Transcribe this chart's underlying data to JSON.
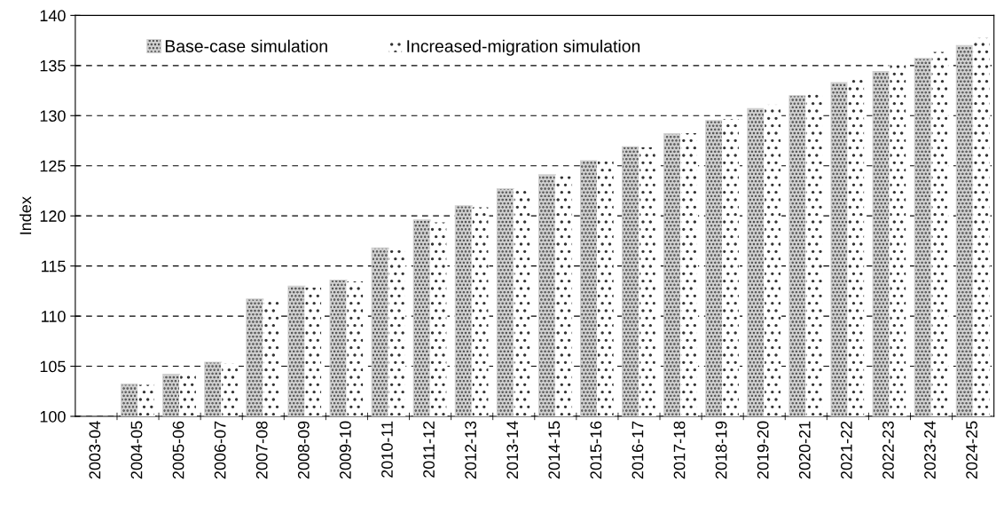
{
  "chart_data": {
    "type": "bar",
    "ylabel": "Index",
    "categories": [
      "2003-04",
      "2004-05",
      "2005-06",
      "2006-07",
      "2007-08",
      "2008-09",
      "2009-10",
      "2010-11",
      "2011-12",
      "2012-13",
      "2013-14",
      "2014-15",
      "2015-16",
      "2016-17",
      "2017-18",
      "2018-19",
      "2019-20",
      "2020-21",
      "2021-22",
      "2022-23",
      "2023-24",
      "2024-25"
    ],
    "series": [
      {
        "name": "Base-case simulation",
        "color": "#d0d0d0",
        "values": [
          null,
          103.2,
          104.2,
          105.4,
          111.7,
          113.0,
          113.6,
          116.8,
          119.6,
          121.0,
          122.7,
          124.1,
          125.5,
          126.9,
          128.2,
          129.5,
          130.7,
          132.0,
          133.3,
          134.4,
          135.7,
          137.0
        ]
      },
      {
        "name": "Increased-migration simulation",
        "color": "#ffffff",
        "values": [
          null,
          103.2,
          104.1,
          105.3,
          111.5,
          112.9,
          113.5,
          116.6,
          119.4,
          120.9,
          122.6,
          124.0,
          125.5,
          126.9,
          128.3,
          129.7,
          131.1,
          132.4,
          133.7,
          135.1,
          136.4,
          137.8
        ]
      }
    ],
    "ylim": [
      100,
      140
    ],
    "yticks": [
      100,
      105,
      110,
      115,
      120,
      125,
      130,
      135,
      140
    ],
    "grid": "y",
    "legend": "top left"
  }
}
